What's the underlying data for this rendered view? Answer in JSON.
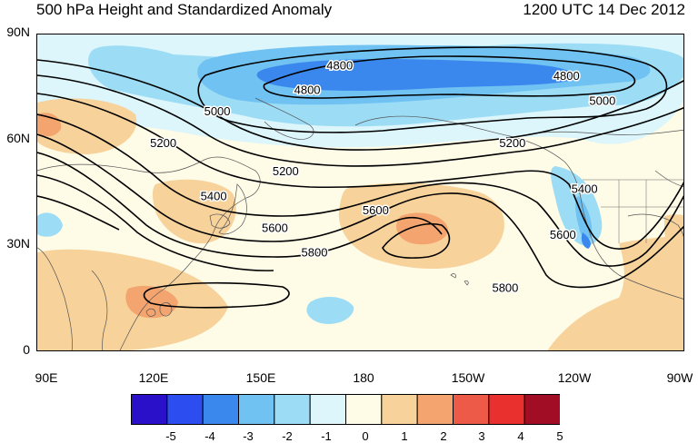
{
  "header": {
    "title": "500 hPa Height and Standardized Anomaly",
    "datetime": "1200 UTC 14 Dec 2012"
  },
  "axes": {
    "lat_ticks": [
      {
        "label": "90N",
        "lat": 90
      },
      {
        "label": "60N",
        "lat": 60
      },
      {
        "label": "30N",
        "lat": 30
      },
      {
        "label": "0",
        "lat": 0
      }
    ],
    "lon_ticks": [
      {
        "label": "90E",
        "lon": 90
      },
      {
        "label": "120E",
        "lon": 120
      },
      {
        "label": "150E",
        "lon": 150
      },
      {
        "label": "180",
        "lon": 180
      },
      {
        "label": "150W",
        "lon": 210
      },
      {
        "label": "120W",
        "lon": 240
      },
      {
        "label": "90W",
        "lon": 270
      }
    ],
    "lon_range": [
      90,
      270
    ],
    "lat_range": [
      0,
      90
    ]
  },
  "contour_labels": [
    {
      "text": "4800",
      "lon": 174,
      "lat": 81
    },
    {
      "text": "4800",
      "lon": 237,
      "lat": 78
    },
    {
      "text": "4800",
      "lon": 165,
      "lat": 74
    },
    {
      "text": "5000",
      "lon": 140,
      "lat": 68
    },
    {
      "text": "5000",
      "lon": 247,
      "lat": 71
    },
    {
      "text": "5200",
      "lon": 125,
      "lat": 59
    },
    {
      "text": "5200",
      "lon": 159,
      "lat": 51
    },
    {
      "text": "5200",
      "lon": 222,
      "lat": 59
    },
    {
      "text": "5400",
      "lon": 139,
      "lat": 44
    },
    {
      "text": "5400",
      "lon": 242,
      "lat": 46
    },
    {
      "text": "5600",
      "lon": 156,
      "lat": 35
    },
    {
      "text": "5600",
      "lon": 184,
      "lat": 40
    },
    {
      "text": "5600",
      "lon": 236,
      "lat": 33
    },
    {
      "text": "5800",
      "lon": 167,
      "lat": 28
    },
    {
      "text": "5800",
      "lon": 220,
      "lat": 18
    }
  ],
  "colorbar": {
    "colors": [
      "#2a10c8",
      "#2c4ef0",
      "#3a88ee",
      "#70c2f2",
      "#9cdcf5",
      "#dcf6fb",
      "#fefbe6",
      "#f7d29b",
      "#f3a46f",
      "#ee5a48",
      "#ea2f2f",
      "#a10d25"
    ],
    "labels": [
      "-5",
      "-4",
      "-3",
      "-2",
      "-1",
      "0",
      "1",
      "2",
      "3",
      "4",
      "5"
    ]
  }
}
